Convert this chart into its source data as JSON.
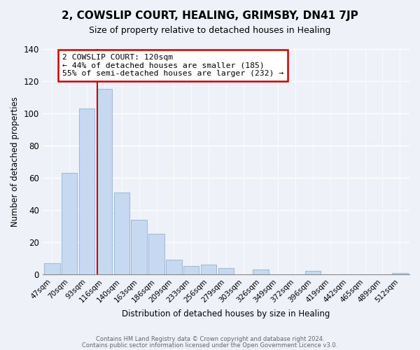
{
  "title": "2, COWSLIP COURT, HEALING, GRIMSBY, DN41 7JP",
  "subtitle": "Size of property relative to detached houses in Healing",
  "xlabel": "Distribution of detached houses by size in Healing",
  "ylabel": "Number of detached properties",
  "bar_labels": [
    "47sqm",
    "70sqm",
    "93sqm",
    "116sqm",
    "140sqm",
    "163sqm",
    "186sqm",
    "209sqm",
    "233sqm",
    "256sqm",
    "279sqm",
    "303sqm",
    "326sqm",
    "349sqm",
    "372sqm",
    "396sqm",
    "419sqm",
    "442sqm",
    "465sqm",
    "489sqm",
    "512sqm"
  ],
  "bar_values": [
    7,
    63,
    103,
    115,
    51,
    34,
    25,
    9,
    5,
    6,
    4,
    0,
    3,
    0,
    0,
    2,
    0,
    0,
    0,
    0,
    1
  ],
  "bar_color": "#c6d9f0",
  "bar_edge_color": "#a0bcd8",
  "vline_x_index": 3,
  "vline_color": "#cc0000",
  "annotation_title": "2 COWSLIP COURT: 120sqm",
  "annotation_line1": "← 44% of detached houses are smaller (185)",
  "annotation_line2": "55% of semi-detached houses are larger (232) →",
  "annotation_box_color": "#ffffff",
  "annotation_box_edge": "#cc0000",
  "ylim": [
    0,
    140
  ],
  "yticks": [
    0,
    20,
    40,
    60,
    80,
    100,
    120,
    140
  ],
  "footer_line1": "Contains HM Land Registry data © Crown copyright and database right 2024.",
  "footer_line2": "Contains public sector information licensed under the Open Government Licence v3.0.",
  "bg_color": "#eef2f8"
}
